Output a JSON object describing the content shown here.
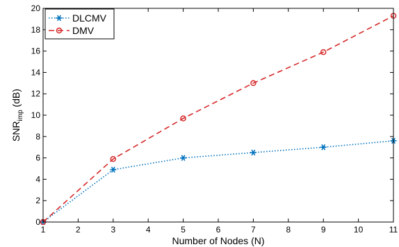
{
  "chart_data": {
    "type": "line",
    "title": "",
    "xlabel": "Number of Nodes (N)",
    "ylabel_main": "SNR",
    "ylabel_sub": "imp",
    "ylabel_unit": " (dB)",
    "xlim": [
      1,
      11
    ],
    "ylim": [
      0,
      20
    ],
    "xticks": [
      1,
      2,
      3,
      4,
      5,
      6,
      7,
      8,
      9,
      10,
      11
    ],
    "yticks": [
      0,
      2,
      4,
      6,
      8,
      10,
      12,
      14,
      16,
      18,
      20
    ],
    "grid": false,
    "legend": "top-left",
    "series": [
      {
        "name": "DLCMV",
        "color": "#0072BD",
        "line_style": "dotted",
        "marker": "asterisk",
        "x": [
          1,
          3,
          5,
          7,
          9,
          11
        ],
        "y": [
          0,
          4.9,
          6.0,
          6.5,
          7.0,
          7.6
        ]
      },
      {
        "name": "DMV",
        "color": "#D62728",
        "line_style": "dashed",
        "marker": "circle",
        "x": [
          1,
          3,
          5,
          7,
          9,
          11
        ],
        "y": [
          0,
          5.9,
          9.7,
          13.0,
          15.9,
          19.3
        ]
      }
    ]
  }
}
